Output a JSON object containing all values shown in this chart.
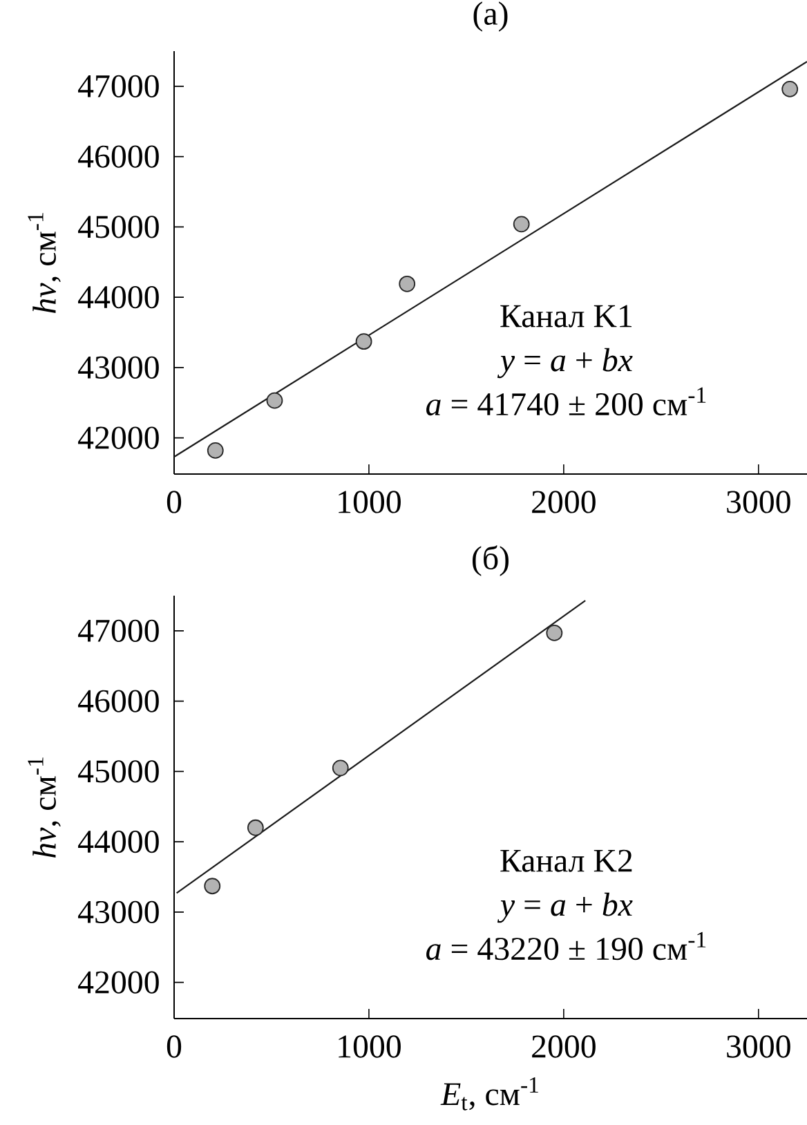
{
  "chart_data": [
    {
      "type": "scatter",
      "title": "(a)",
      "ylabel": "*hν*, см$^{-1}$",
      "xlim": [
        0,
        3249
      ],
      "ylim": [
        41485,
        47500
      ],
      "xticks": [
        0,
        1000,
        2000,
        3000
      ],
      "yticks": [
        42000,
        43000,
        44000,
        45000,
        46000,
        47000
      ],
      "marker": "circle",
      "series": [
        {
          "x": [
            212,
            516,
            974,
            1196,
            1783,
            3161
          ],
          "values": [
            41820,
            42530,
            43370,
            44190,
            45040,
            46960
          ],
          "color": "#b3b3b3"
        },
        {
          "type": "line",
          "marker": "none",
          "x": [
            0,
            3249
          ],
          "values": [
            41730,
            47350
          ],
          "color": "#1a1a1a"
        }
      ],
      "annotations": [
        "Канал K1",
        "*y* = *a* + *bx*",
        "*a* = 41740 ± 200 см$^{-1}$"
      ]
    },
    {
      "type": "scatter",
      "title": "(б)",
      "xlabel": "*E*$_{t}$, см$^{-1}$",
      "ylabel": "*hν*, см$^{-1}$",
      "xlim": [
        0,
        3249
      ],
      "ylim": [
        41485,
        47500
      ],
      "xticks": [
        0,
        1000,
        2000,
        3000
      ],
      "yticks": [
        42000,
        43000,
        44000,
        45000,
        46000,
        47000
      ],
      "marker": "circle",
      "series": [
        {
          "x": [
            196,
            418,
            854,
            1952
          ],
          "values": [
            43370,
            44200,
            45050,
            46970
          ],
          "color": "#b3b3b3"
        },
        {
          "type": "line",
          "marker": "none",
          "x": [
            13,
            2111
          ],
          "values": [
            43270,
            47430
          ],
          "color": "#1a1a1a"
        }
      ],
      "annotations": [
        "Канал K2",
        "*y* = *a* + *bx*",
        "*a* = 43220 ± 190 см$^{-1}$"
      ]
    }
  ]
}
